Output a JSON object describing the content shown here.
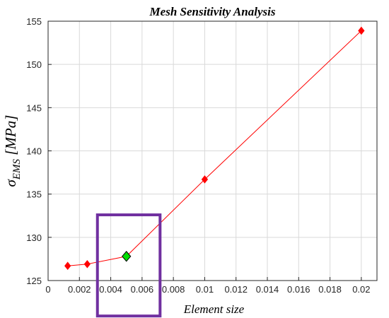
{
  "chart_data": {
    "type": "line",
    "title": "Mesh Sensitivity Analysis",
    "xlabel": "Element size",
    "ylabel": {
      "symbol": "σ",
      "subscript": "EMS",
      "unit": " [MPa]"
    },
    "xlim": [
      0,
      0.021
    ],
    "ylim": [
      125,
      155
    ],
    "x_ticks": [
      "0",
      "0.002",
      "0.004",
      "0.006",
      "0.008",
      "0.01",
      "0.012",
      "0.014",
      "0.016",
      "0.018",
      "0.02"
    ],
    "x_tick_values": [
      0,
      0.002,
      0.004,
      0.006,
      0.008,
      0.01,
      0.012,
      0.014,
      0.016,
      0.018,
      0.02
    ],
    "y_ticks": [
      "125",
      "130",
      "135",
      "140",
      "145",
      "150",
      "155"
    ],
    "y_tick_values": [
      125,
      130,
      135,
      140,
      145,
      150,
      155
    ],
    "grid": true,
    "series": [
      {
        "color": "#ff0000",
        "marker": "diamond",
        "x": [
          0.00125,
          0.0025,
          0.005,
          0.01,
          0.02
        ],
        "y": [
          126.7,
          126.9,
          127.8,
          136.7,
          153.9
        ]
      }
    ],
    "highlighted_point": {
      "x": 0.005,
      "y": 127.8,
      "color": "#00dd00"
    },
    "highlight_box": {
      "x_range": [
        0.00315,
        0.00715
      ],
      "y_range": [
        120.9,
        132.6
      ],
      "color": "#7030a0"
    }
  }
}
